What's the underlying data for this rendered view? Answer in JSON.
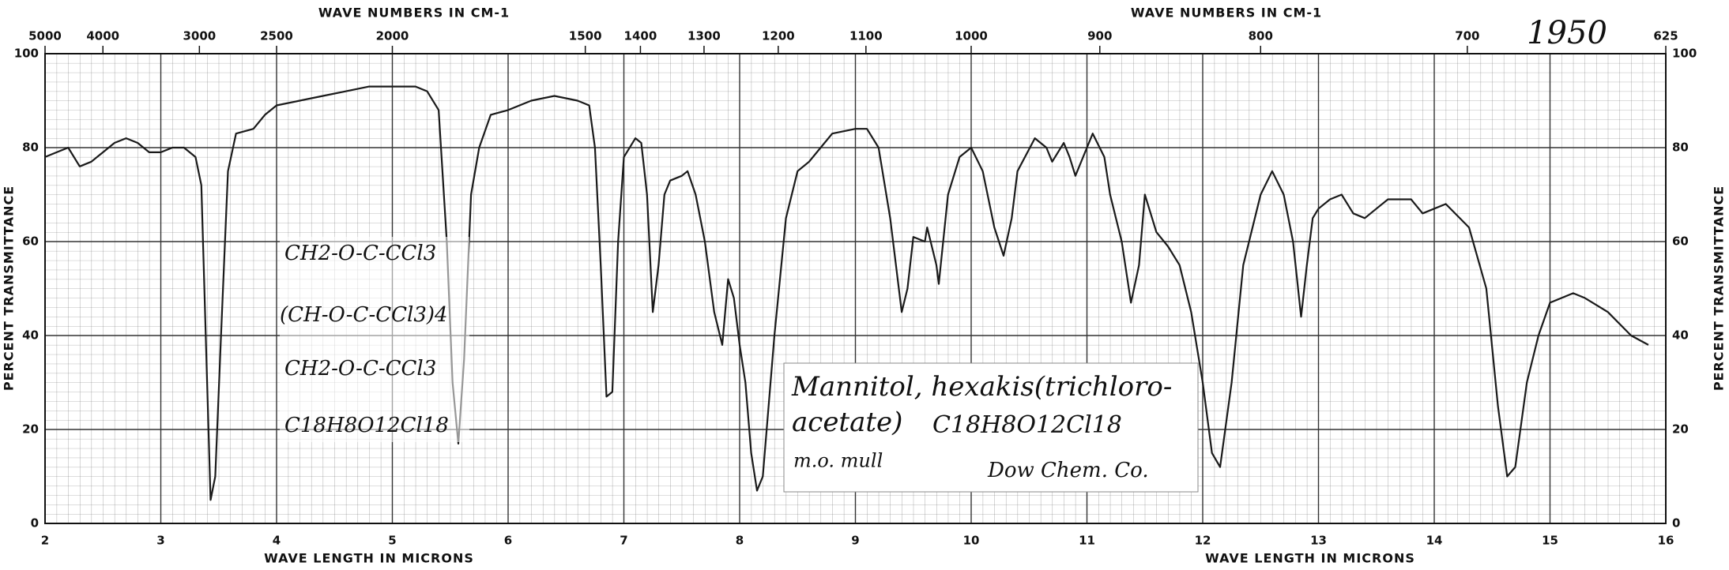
{
  "chart_data": {
    "type": "line",
    "xlabel": "WAVE LENGTH IN MICRONS",
    "x2label": "WAVE NUMBERS IN CM-1",
    "ylabel": "PERCENT TRANSMITTANCE",
    "xlim": [
      2,
      16
    ],
    "xticks": [
      2,
      3,
      4,
      5,
      6,
      7,
      8,
      9,
      10,
      11,
      12,
      13,
      14,
      15,
      16
    ],
    "x2ticks": [
      5000,
      4000,
      3000,
      2500,
      2000,
      1500,
      1400,
      1300,
      1200,
      1100,
      1000,
      900,
      800,
      700,
      625
    ],
    "ylim": [
      0,
      100
    ],
    "yticks": [
      0,
      20,
      40,
      60,
      80,
      100
    ],
    "grid": true,
    "color": "#1a1a1a",
    "x": [
      2.0,
      2.1,
      2.2,
      2.3,
      2.4,
      2.6,
      2.7,
      2.8,
      2.9,
      3.0,
      3.1,
      3.2,
      3.3,
      3.35,
      3.4,
      3.43,
      3.47,
      3.52,
      3.58,
      3.65,
      3.8,
      3.9,
      4.0,
      4.2,
      4.4,
      4.6,
      4.8,
      5.0,
      5.2,
      5.3,
      5.4,
      5.47,
      5.52,
      5.57,
      5.62,
      5.68,
      5.75,
      5.85,
      6.0,
      6.2,
      6.4,
      6.6,
      6.7,
      6.75,
      6.8,
      6.85,
      6.9,
      6.95,
      7.0,
      7.1,
      7.15,
      7.2,
      7.25,
      7.3,
      7.35,
      7.4,
      7.5,
      7.55,
      7.62,
      7.7,
      7.78,
      7.85,
      7.9,
      7.95,
      8.0,
      8.05,
      8.1,
      8.15,
      8.2,
      8.3,
      8.4,
      8.5,
      8.6,
      8.7,
      8.8,
      9.0,
      9.1,
      9.2,
      9.3,
      9.4,
      9.45,
      9.5,
      9.6,
      9.62,
      9.7,
      9.72,
      9.8,
      9.9,
      10.0,
      10.1,
      10.2,
      10.28,
      10.35,
      10.4,
      10.55,
      10.65,
      10.7,
      10.8,
      10.85,
      10.9,
      11.0,
      11.05,
      11.15,
      11.2,
      11.3,
      11.38,
      11.45,
      11.5,
      11.6,
      11.7,
      11.8,
      11.9,
      12.0,
      12.08,
      12.15,
      12.25,
      12.35,
      12.5,
      12.6,
      12.7,
      12.78,
      12.85,
      12.9,
      12.95,
      13.0,
      13.1,
      13.2,
      13.3,
      13.4,
      13.5,
      13.6,
      13.8,
      13.9,
      14.0,
      14.1,
      14.3,
      14.45,
      14.55,
      14.63,
      14.7,
      14.8,
      14.9,
      15.0,
      15.2,
      15.3,
      15.5,
      15.7,
      15.85
    ],
    "values": [
      78,
      79,
      80,
      76,
      77,
      81,
      82,
      81,
      79,
      79,
      80,
      80,
      78,
      72,
      30,
      5,
      10,
      40,
      75,
      83,
      84,
      87,
      89,
      90,
      91,
      92,
      93,
      93,
      93,
      92,
      88,
      60,
      30,
      17,
      35,
      70,
      80,
      87,
      88,
      90,
      91,
      90,
      89,
      80,
      55,
      27,
      28,
      60,
      78,
      82,
      81,
      70,
      45,
      55,
      70,
      73,
      74,
      75,
      70,
      60,
      45,
      38,
      52,
      48,
      38,
      30,
      15,
      7,
      10,
      40,
      65,
      75,
      77,
      80,
      83,
      84,
      84,
      80,
      65,
      45,
      50,
      61,
      60,
      63,
      55,
      51,
      70,
      78,
      80,
      75,
      63,
      57,
      65,
      75,
      82,
      80,
      77,
      81,
      78,
      74,
      80,
      83,
      78,
      70,
      60,
      47,
      55,
      70,
      62,
      59,
      55,
      45,
      30,
      15,
      12,
      30,
      55,
      70,
      75,
      70,
      60,
      44,
      55,
      65,
      67,
      69,
      70,
      66,
      65,
      67,
      69,
      69,
      66,
      67,
      68,
      63,
      50,
      25,
      10,
      12,
      30,
      40,
      47,
      49,
      48,
      45,
      40,
      38
    ],
    "annotations": [
      "1950",
      "Mannitol, hexakis(trichloro-",
      "acetate)",
      "C18H8O12Cl18",
      "m.o. mull",
      "Dow Chem. Co.",
      "CH2-O-C-CCl3",
      "(CH-O-C-CCl3)4",
      "CH2-O-C-CCl3",
      "C18H8O12Cl18"
    ]
  }
}
